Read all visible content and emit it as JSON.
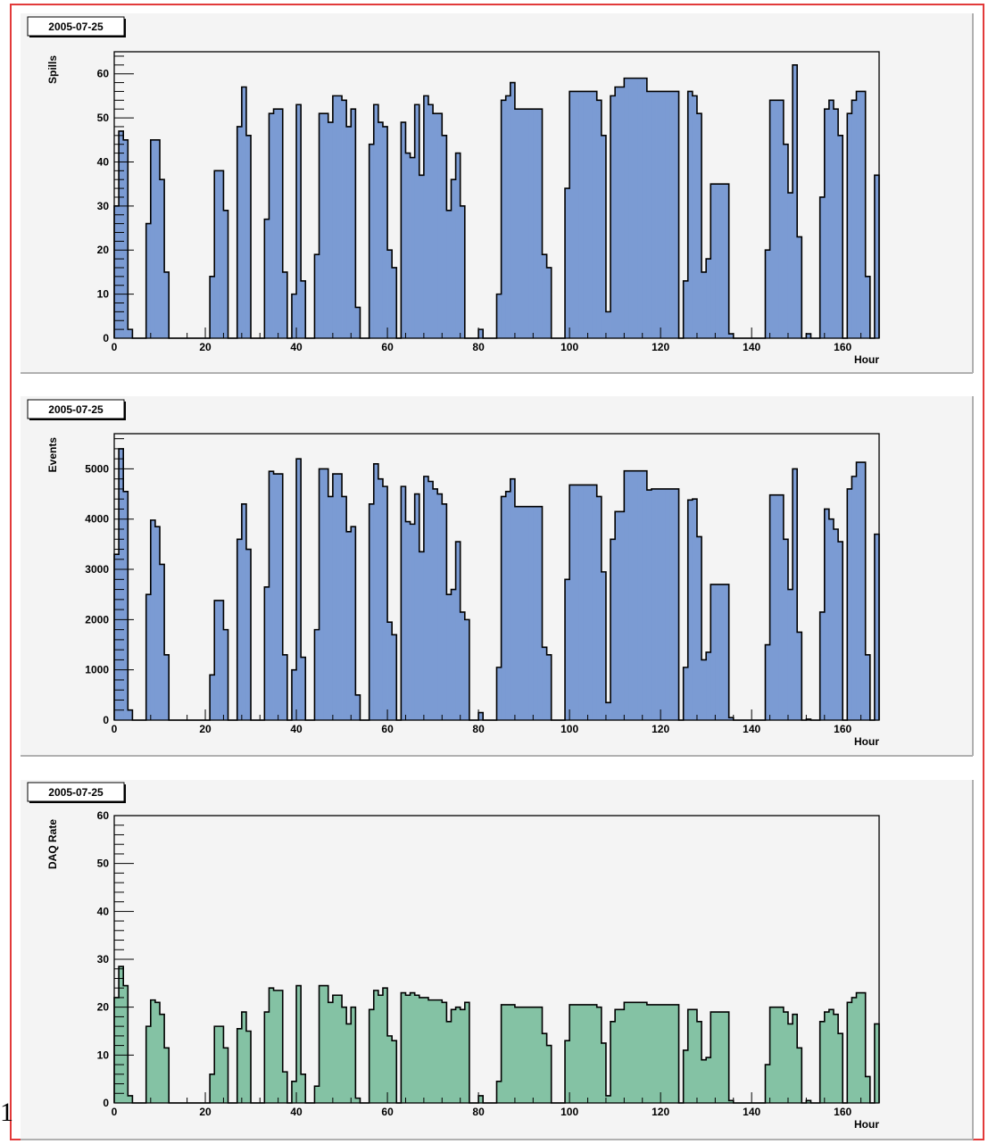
{
  "page": {
    "stray_glyph": "1"
  },
  "colors": {
    "blue_fill": "#7b9bd3",
    "green_fill": "#84c2a4",
    "panel_bg": "#f4f4f4",
    "frame_border": "#e23a3a"
  },
  "chart_data": [
    {
      "type": "histogram",
      "tag": "2005-07-25",
      "ylabel": "Spills",
      "xlabel": "Hour",
      "xlim": [
        0,
        168
      ],
      "ylim": [
        0,
        65
      ],
      "xticks": [
        0,
        20,
        40,
        60,
        80,
        100,
        120,
        140,
        160
      ],
      "yticks": [
        0,
        10,
        20,
        30,
        40,
        50,
        60
      ],
      "bin_width": 1,
      "fill": "#7b9bd3",
      "values": [
        30,
        47,
        45,
        2,
        0,
        0,
        0,
        26,
        45,
        45,
        36,
        15,
        0,
        0,
        0,
        0,
        0,
        0,
        0,
        0,
        0,
        14,
        38,
        38,
        29,
        0,
        0,
        48,
        57,
        46,
        0,
        0,
        0,
        27,
        51,
        52,
        52,
        15,
        0,
        10,
        53,
        13,
        0,
        0,
        19,
        51,
        51,
        49,
        55,
        55,
        54,
        48,
        52,
        7,
        0,
        0,
        44,
        53,
        49,
        48,
        20,
        16,
        0,
        49,
        42,
        41,
        53,
        37,
        55,
        53,
        51,
        51,
        46,
        29,
        36,
        42,
        30,
        0,
        0,
        0,
        2,
        0,
        0,
        0,
        10,
        54,
        55,
        58,
        52,
        52,
        52,
        52,
        52,
        52,
        19,
        16,
        0,
        0,
        0,
        34,
        56,
        56,
        56,
        56,
        56,
        56,
        54,
        46,
        6,
        55,
        57,
        57,
        59,
        59,
        59,
        59,
        59,
        56,
        56,
        56,
        56,
        56,
        56,
        56,
        0,
        13,
        56,
        55,
        51,
        15,
        18,
        35,
        35,
        35,
        35,
        1,
        0,
        0,
        0,
        0,
        0,
        0,
        0,
        20,
        54,
        54,
        54,
        44,
        33,
        62,
        23,
        0,
        1,
        0,
        0,
        32,
        52,
        54,
        52,
        46,
        0,
        51,
        54,
        56,
        56,
        14,
        0,
        37
      ]
    },
    {
      "type": "histogram",
      "tag": "2005-07-25",
      "ylabel": "Events",
      "xlabel": "Hour",
      "xlim": [
        0,
        168
      ],
      "ylim": [
        0,
        5700
      ],
      "xticks": [
        0,
        20,
        40,
        60,
        80,
        100,
        120,
        140,
        160
      ],
      "yticks": [
        0,
        1000,
        2000,
        3000,
        4000,
        5000
      ],
      "bin_width": 1,
      "fill": "#7b9bd3",
      "values": [
        3300,
        5400,
        4550,
        200,
        0,
        0,
        0,
        2500,
        3980,
        3850,
        3100,
        1300,
        0,
        0,
        0,
        0,
        0,
        0,
        0,
        0,
        0,
        900,
        2380,
        2380,
        1800,
        0,
        0,
        3600,
        4300,
        3400,
        0,
        0,
        0,
        2650,
        4950,
        4900,
        4900,
        1300,
        0,
        1000,
        5200,
        1250,
        0,
        0,
        1800,
        5000,
        5000,
        4450,
        4900,
        4900,
        4450,
        3750,
        3850,
        500,
        0,
        0,
        4300,
        5100,
        4800,
        4650,
        1950,
        1700,
        0,
        4650,
        3950,
        3900,
        4500,
        3350,
        4850,
        4750,
        4600,
        4500,
        4300,
        2500,
        2600,
        3550,
        2150,
        2000,
        0,
        0,
        150,
        0,
        0,
        0,
        1050,
        4450,
        4550,
        4800,
        4250,
        4250,
        4250,
        4250,
        4250,
        4250,
        1450,
        1300,
        0,
        0,
        0,
        2800,
        4680,
        4680,
        4680,
        4680,
        4680,
        4680,
        4450,
        2950,
        350,
        3600,
        4150,
        4150,
        4960,
        4960,
        4960,
        4960,
        4960,
        4580,
        4600,
        4600,
        4600,
        4600,
        4600,
        4600,
        0,
        1050,
        4380,
        4400,
        3650,
        1200,
        1350,
        2700,
        2700,
        2700,
        2700,
        50,
        0,
        0,
        0,
        0,
        0,
        0,
        0,
        1500,
        4480,
        4480,
        4480,
        3600,
        2600,
        5000,
        1750,
        0,
        20,
        0,
        0,
        2150,
        4200,
        4000,
        3800,
        3550,
        0,
        4600,
        4850,
        5130,
        5130,
        1300,
        0,
        3700
      ]
    },
    {
      "type": "histogram",
      "tag": "2005-07-25",
      "ylabel": "DAQ Rate",
      "xlabel": "Hour",
      "xlim": [
        0,
        168
      ],
      "ylim": [
        0,
        60
      ],
      "xticks": [
        0,
        20,
        40,
        60,
        80,
        100,
        120,
        140,
        160
      ],
      "yticks": [
        0,
        10,
        20,
        30,
        40,
        50,
        60
      ],
      "bin_width": 1,
      "fill": "#84c2a4",
      "values": [
        22,
        28.5,
        24.5,
        1.5,
        0,
        0,
        0,
        16,
        21.5,
        21,
        18.5,
        11.5,
        0,
        0,
        0,
        0,
        0,
        0,
        0,
        0,
        0,
        6,
        16,
        16,
        11.5,
        0,
        0,
        15.5,
        19,
        15,
        0,
        0,
        0,
        19,
        24,
        23.5,
        23.5,
        6.5,
        0,
        4.5,
        24.5,
        6,
        0,
        0,
        3.5,
        24.5,
        24.5,
        21,
        22.5,
        22.5,
        20,
        16.5,
        20,
        1,
        0,
        0,
        19.5,
        23.5,
        22.5,
        24,
        14,
        13,
        0,
        23,
        22.5,
        23,
        22.5,
        22,
        22,
        21.5,
        21.5,
        21.5,
        21,
        17,
        19.5,
        20,
        19.5,
        21,
        0,
        0,
        1.5,
        0,
        0,
        0,
        4.5,
        20.5,
        20.5,
        20.5,
        20,
        20,
        20,
        20,
        20,
        20,
        14.5,
        12,
        0,
        0,
        0,
        13,
        20.5,
        20.5,
        20.5,
        20.5,
        20.5,
        20.5,
        20,
        12.5,
        1.5,
        17,
        19.5,
        19.5,
        21,
        21,
        21,
        21,
        21,
        20.5,
        20.5,
        20.5,
        20.5,
        20.5,
        20.5,
        20.5,
        0,
        11,
        19.5,
        19.5,
        17,
        9,
        9.5,
        19,
        19,
        19,
        19,
        0.5,
        0,
        0,
        0,
        0,
        0,
        0,
        0,
        8,
        20,
        20,
        20,
        19,
        16.5,
        18.5,
        11.5,
        0,
        0.5,
        0,
        0,
        17,
        19,
        19.5,
        18.5,
        14.5,
        0,
        21,
        22,
        23,
        23,
        5.5,
        0,
        16.5
      ]
    }
  ]
}
